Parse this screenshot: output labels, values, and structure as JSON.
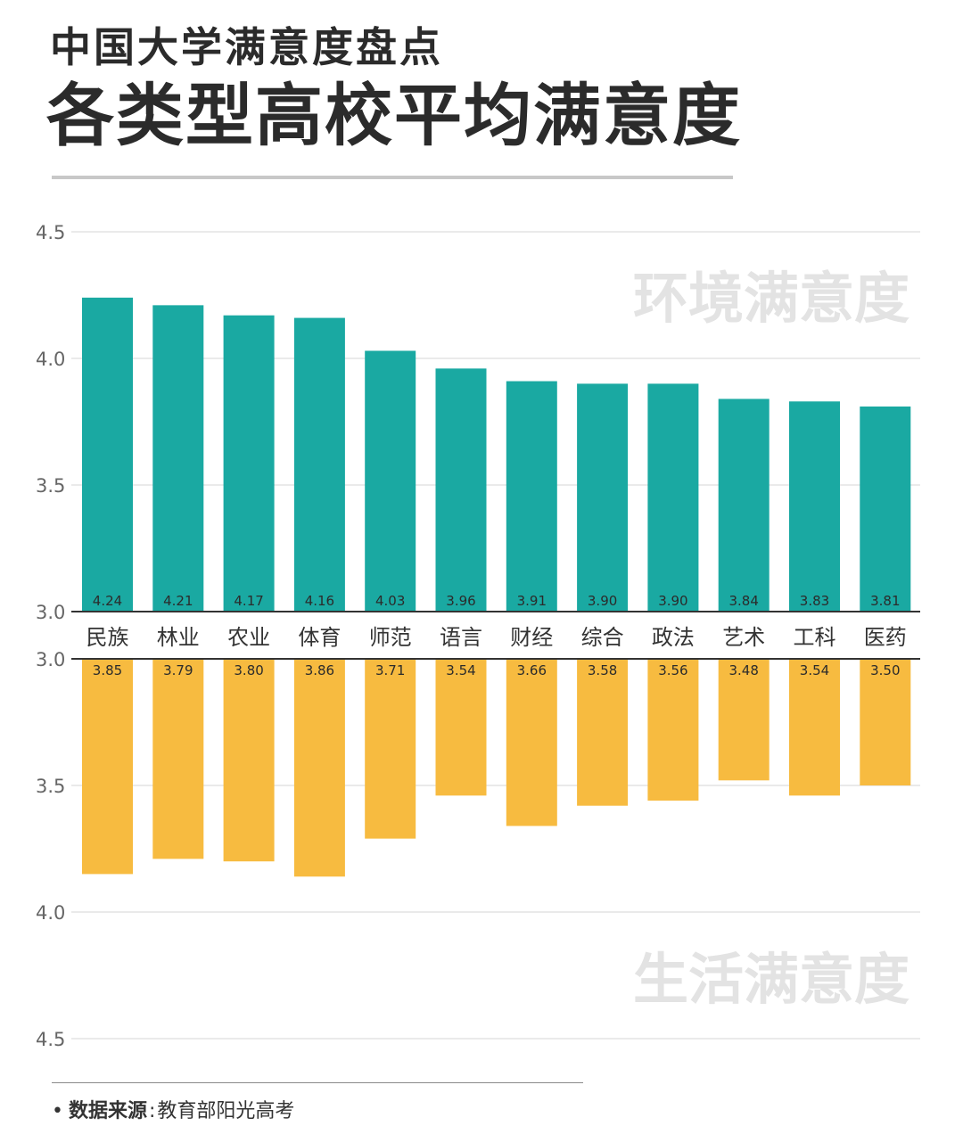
{
  "header": {
    "subtitle": "中国大学满意度盘点",
    "title": "各类型高校平均满意度"
  },
  "footer": {
    "bullet": "•",
    "source_label": "数据来源",
    "colon": ":",
    "source_value": "教育部阳光高考"
  },
  "colors": {
    "environment": "#1aa9a2",
    "life": "#f7bb40",
    "watermark": "#e3e3e3",
    "gridline": "#d6d6d6",
    "axis_text": "#666666",
    "baseline": "#333333"
  },
  "chart_data": [
    {
      "type": "bar",
      "series": [
        {
          "name": "环境满意度",
          "values": [
            4.24,
            4.21,
            4.17,
            4.16,
            4.03,
            3.96,
            3.91,
            3.9,
            3.9,
            3.84,
            3.83,
            3.81
          ],
          "labels": [
            "4.24",
            "4.21",
            "4.17",
            "4.16",
            "4.03",
            "3.96",
            "3.91",
            "3.90",
            "3.90",
            "3.84",
            "3.83",
            "3.81"
          ]
        }
      ],
      "categories": [
        "民族",
        "林业",
        "农业",
        "体育",
        "师范",
        "语言",
        "财经",
        "综合",
        "政法",
        "艺术",
        "工科",
        "医药"
      ],
      "ylim": [
        3.0,
        4.5
      ],
      "yticks": [
        "3.0",
        "3.5",
        "4.0",
        "4.5"
      ],
      "direction": "up",
      "grid": true
    },
    {
      "type": "bar",
      "series": [
        {
          "name": "生活满意度",
          "values": [
            3.85,
            3.79,
            3.8,
            3.86,
            3.71,
            3.54,
            3.66,
            3.58,
            3.56,
            3.48,
            3.54,
            3.5
          ],
          "labels": [
            "3.85",
            "3.79",
            "3.80",
            "3.86",
            "3.71",
            "3.54",
            "3.66",
            "3.58",
            "3.56",
            "3.48",
            "3.54",
            "3.50"
          ]
        }
      ],
      "categories": [
        "民族",
        "林业",
        "农业",
        "体育",
        "师范",
        "语言",
        "财经",
        "综合",
        "政法",
        "艺术",
        "工科",
        "医药"
      ],
      "ylim": [
        3.0,
        4.5
      ],
      "yticks": [
        "3.0",
        "3.5",
        "4.0",
        "4.5"
      ],
      "direction": "down",
      "grid": true
    }
  ]
}
